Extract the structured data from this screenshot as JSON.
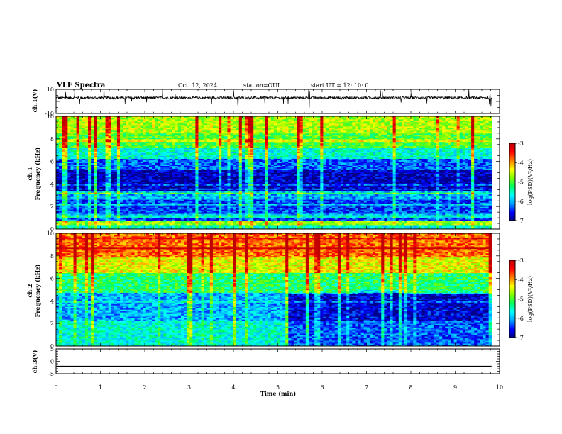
{
  "header": {
    "title": "VLF Spectra",
    "date": "Oct. 12, 2024",
    "station": "station=OUI",
    "start": "start  UT =   12: 10: 0"
  },
  "chart_data": [
    {
      "type": "line",
      "panel": "ch1-waveform",
      "ylabel": "ch.1(V)",
      "ylim": [
        -10,
        10
      ],
      "ytick_labels": [
        "10",
        "-10"
      ],
      "x_range_min": [
        0,
        9.82
      ],
      "signal": "noisy trace centred near 3 V with sparse spikes"
    },
    {
      "type": "heatmap",
      "panel": "ch1-spectrogram",
      "ylabel_line1": "ch.1",
      "ylabel_line2": "Frequency (kHz)",
      "ylim": [
        0,
        10
      ],
      "ytick_labels": [
        "0",
        "2",
        "4",
        "6",
        "8",
        "10"
      ],
      "colorbar": {
        "label": "log(PSD)(V²/Hz)",
        "range": [
          -7,
          -3
        ],
        "tick_labels": [
          "-3",
          "-4",
          "-5",
          "-6",
          "-7"
        ]
      },
      "bands_khz": [
        {
          "from": 0,
          "to": 0.8,
          "level": -5.6
        },
        {
          "from": 0.8,
          "to": 2.6,
          "level": -6.4
        },
        {
          "from": 2.6,
          "to": 3.2,
          "level": -6.0
        },
        {
          "from": 3.2,
          "to": 5.2,
          "level": -6.8
        },
        {
          "from": 5.2,
          "to": 6.2,
          "level": -6.3
        },
        {
          "from": 6.2,
          "to": 7.2,
          "level": -5.6
        },
        {
          "from": 7.2,
          "to": 8.5,
          "level": -5.0
        },
        {
          "from": 8.5,
          "to": 10,
          "level": -4.6
        }
      ]
    },
    {
      "type": "heatmap",
      "panel": "ch2-spectrogram",
      "ylabel_line1": "ch.2",
      "ylabel_line2": "Frequency (kHz)",
      "ylim": [
        0,
        10
      ],
      "ytick_labels": [
        "0",
        "2",
        "4",
        "6",
        "8",
        "10"
      ],
      "colorbar": {
        "label": "log(PSD)(V²/Hz)",
        "range": [
          -7,
          -3
        ],
        "tick_labels": [
          "-3",
          "-4",
          "-5",
          "-6",
          "-7"
        ]
      },
      "bands_khz": [
        {
          "from": 0,
          "to": 2.2,
          "level": -5.6
        },
        {
          "from": 2.2,
          "to": 4.8,
          "level": -6.0
        },
        {
          "from": 4.8,
          "to": 6.5,
          "level": -5.2
        },
        {
          "from": 6.5,
          "to": 8.0,
          "level": -4.4
        },
        {
          "from": 8.0,
          "to": 10,
          "level": -3.8
        }
      ]
    },
    {
      "type": "line",
      "panel": "ch3-waveform",
      "ylabel": "ch.3(V)",
      "ylim": [
        -5,
        5
      ],
      "ytick_labels": [
        "5",
        "0",
        "-5"
      ],
      "x_range_min": [
        0,
        9.82
      ],
      "constant_value": -2
    }
  ],
  "xaxis": {
    "label": "Time (min)",
    "range": [
      0,
      10
    ],
    "tick_labels": [
      "0",
      "1",
      "2",
      "3",
      "4",
      "5",
      "6",
      "7",
      "8",
      "9",
      "10"
    ]
  },
  "colors": {
    "colormap": [
      "#000080",
      "#0000ff",
      "#00a0ff",
      "#00ffff",
      "#00ff60",
      "#80ff00",
      "#ffff00",
      "#ff8000",
      "#ff0000",
      "#c00000"
    ]
  }
}
